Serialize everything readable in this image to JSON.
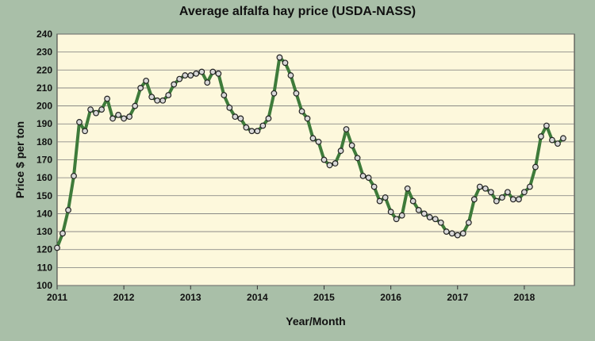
{
  "chart_data": {
    "type": "line",
    "title": "Average alfalfa hay price (USDA-NASS)",
    "xlabel": "Year/Month",
    "ylabel": "Price $ per ton",
    "ylim": [
      100,
      240
    ],
    "yticks": [
      100,
      110,
      120,
      130,
      140,
      150,
      160,
      170,
      180,
      190,
      200,
      210,
      220,
      230,
      240
    ],
    "xticks": [
      "2011",
      "2012",
      "2013",
      "2014",
      "2015",
      "2016",
      "2017",
      "2018"
    ],
    "xlim": [
      2011.0,
      2018.75
    ],
    "grid": "horizontal",
    "legend": "none",
    "colors": {
      "line": "#3e7b3a",
      "marker_fill": "#d8d8d8",
      "plot_bg": "#fdf8dc",
      "page_bg": "#a9bfa8"
    },
    "series": [
      {
        "x": [
          2011.0,
          2011.083,
          2011.167,
          2011.25,
          2011.333,
          2011.417,
          2011.5,
          2011.583,
          2011.667,
          2011.75,
          2011.833,
          2011.917,
          2012.0,
          2012.083,
          2012.167,
          2012.25,
          2012.333,
          2012.417,
          2012.5,
          2012.583,
          2012.667,
          2012.75,
          2012.833,
          2012.917,
          2013.0,
          2013.083,
          2013.167,
          2013.25,
          2013.333,
          2013.417,
          2013.5,
          2013.583,
          2013.667,
          2013.75,
          2013.833,
          2013.917,
          2014.0,
          2014.083,
          2014.167,
          2014.25,
          2014.333,
          2014.417,
          2014.5,
          2014.583,
          2014.667,
          2014.75,
          2014.833,
          2014.917,
          2015.0,
          2015.083,
          2015.167,
          2015.25,
          2015.333,
          2015.417,
          2015.5,
          2015.583,
          2015.667,
          2015.75,
          2015.833,
          2015.917,
          2016.0,
          2016.083,
          2016.167,
          2016.25,
          2016.333,
          2016.417,
          2016.5,
          2016.583,
          2016.667,
          2016.75,
          2016.833,
          2016.917,
          2017.0,
          2017.083,
          2017.167,
          2017.25,
          2017.333,
          2017.417,
          2017.5,
          2017.583,
          2017.667,
          2017.75,
          2017.833,
          2017.917,
          2018.0,
          2018.083,
          2018.167,
          2018.25,
          2018.333,
          2018.417,
          2018.5,
          2018.583
        ],
        "y": [
          121,
          129,
          142,
          161,
          191,
          186,
          198,
          196,
          198,
          204,
          193,
          195,
          193,
          194,
          200,
          210,
          214,
          205,
          203,
          203,
          206,
          212,
          215,
          217,
          217,
          218,
          219,
          213,
          219,
          218,
          206,
          199,
          194,
          193,
          188,
          186,
          186,
          189,
          193,
          207,
          227,
          224,
          217,
          207,
          197,
          193,
          182,
          180,
          170,
          167,
          168,
          175,
          187,
          178,
          171,
          161,
          160,
          155,
          147,
          149,
          141,
          137,
          139,
          154,
          147,
          142,
          140,
          138,
          137,
          135,
          130,
          129,
          128,
          129,
          135,
          148,
          155,
          154,
          152,
          147,
          149,
          152,
          148,
          148,
          152,
          155,
          166,
          183,
          189,
          181,
          179,
          182
        ]
      }
    ]
  }
}
